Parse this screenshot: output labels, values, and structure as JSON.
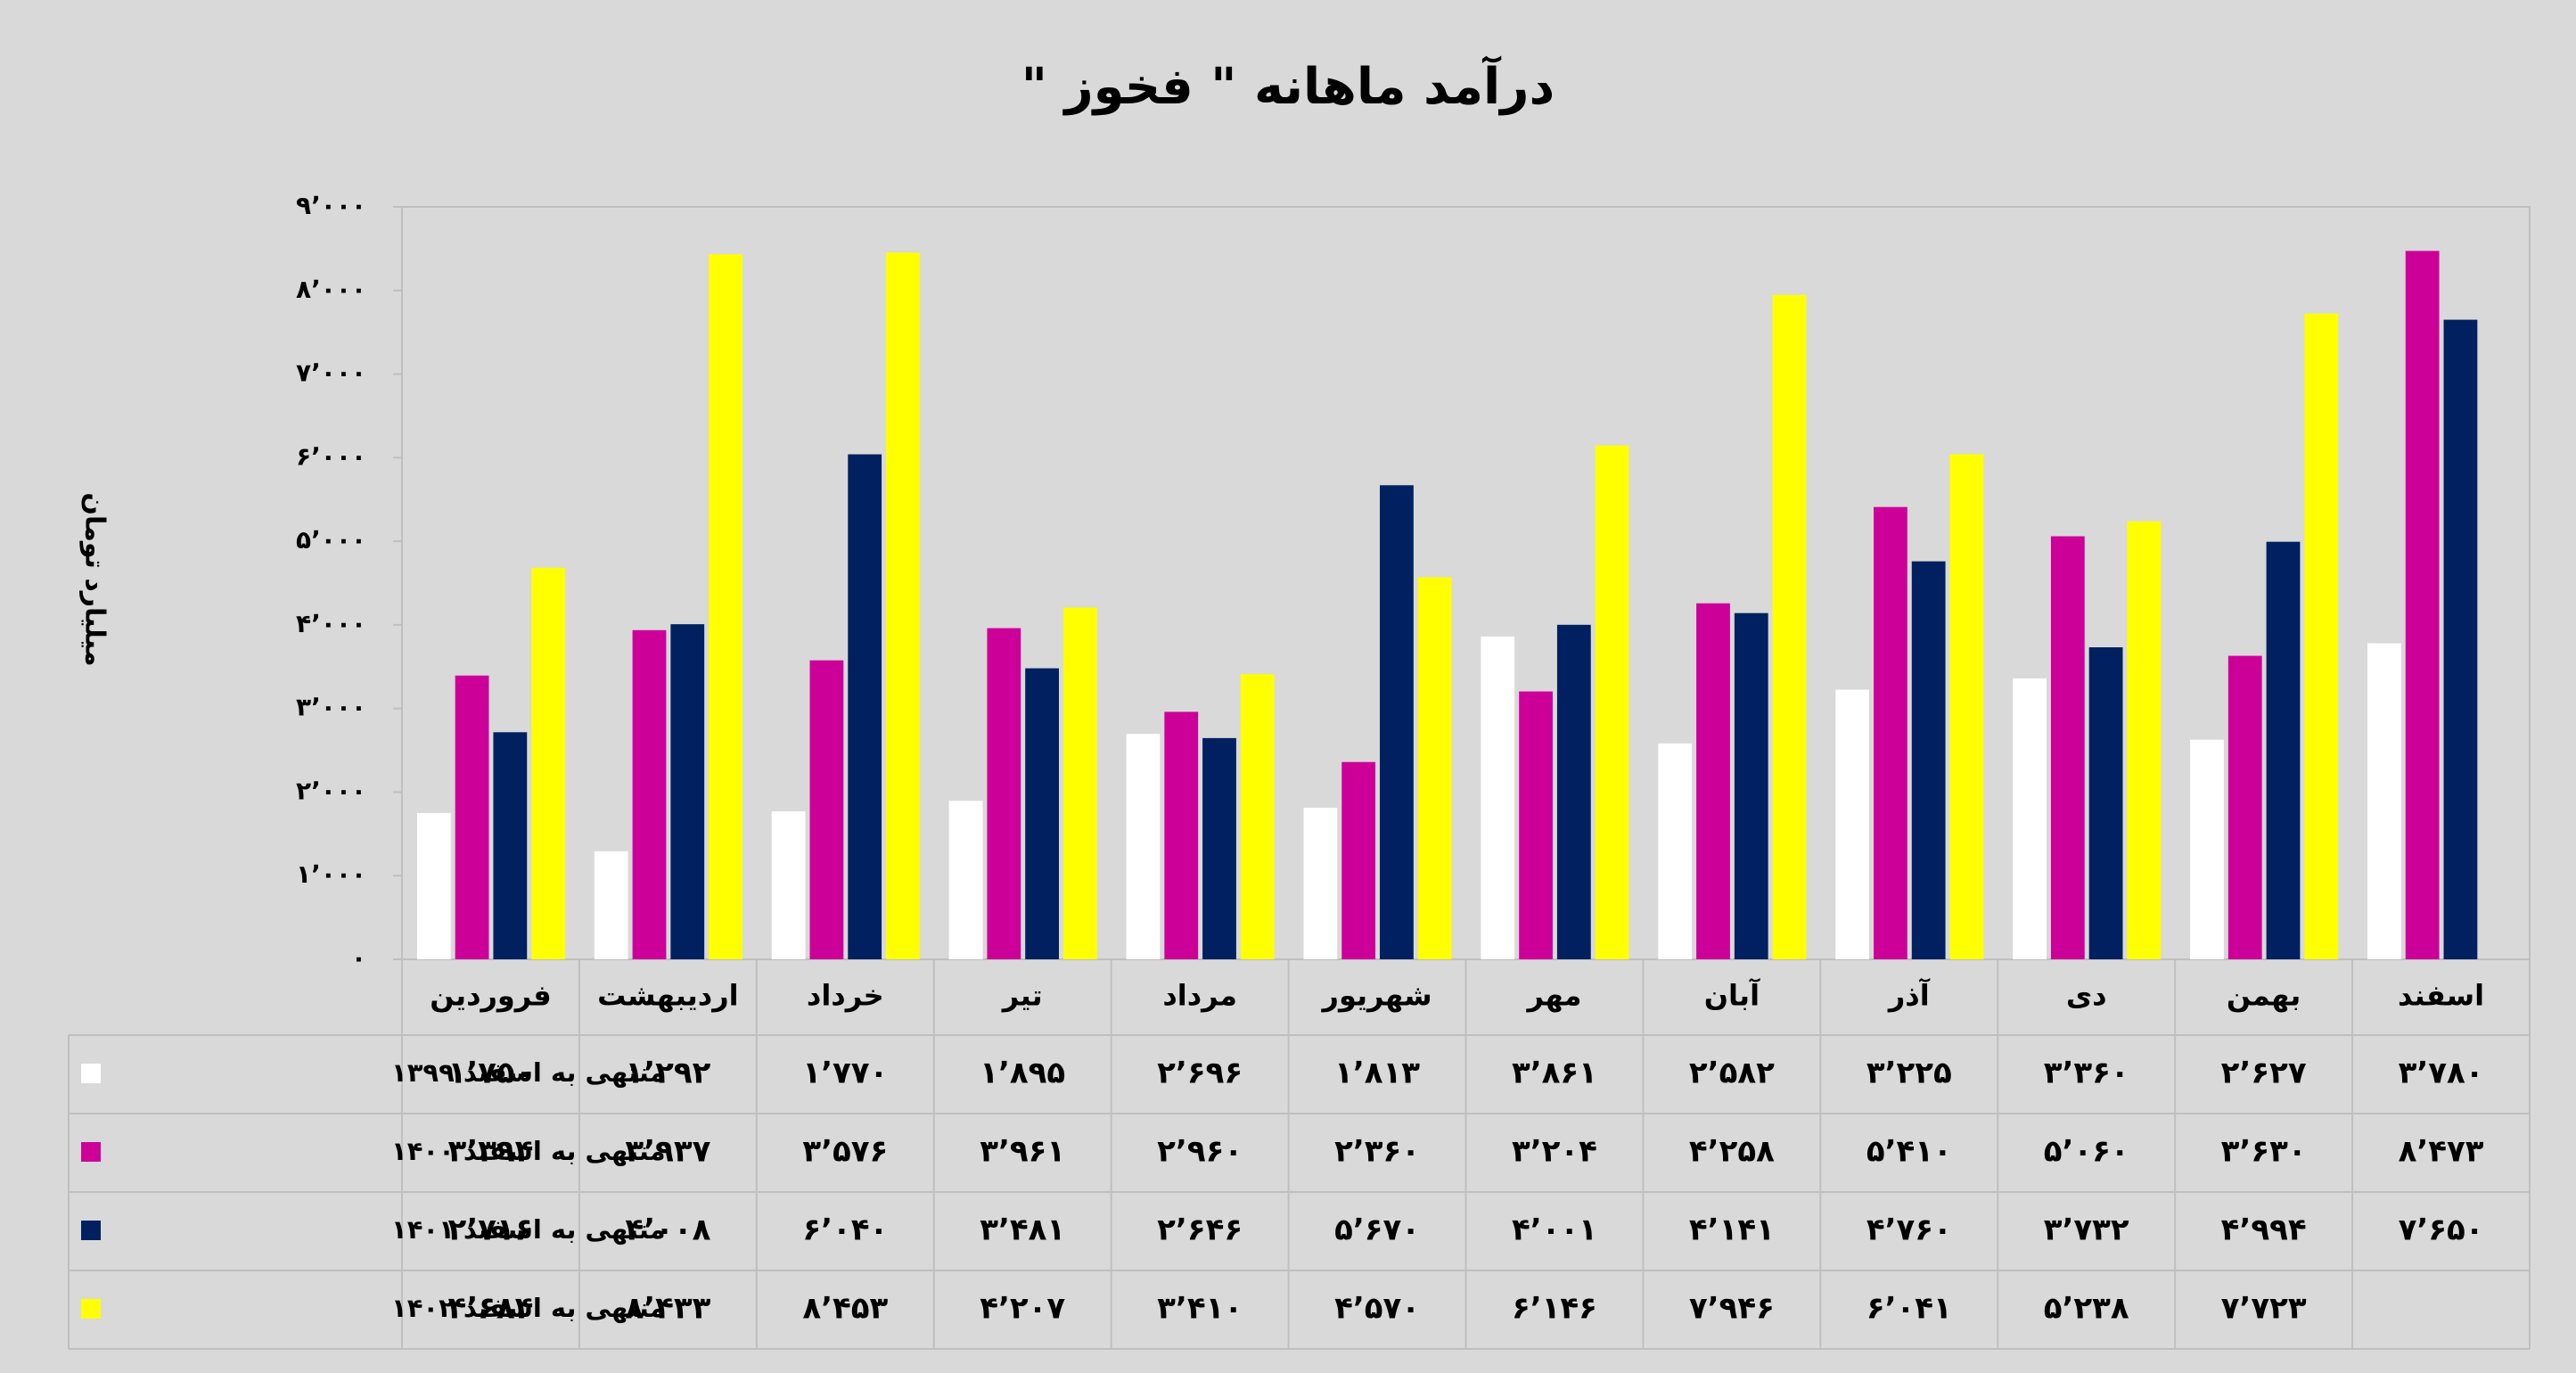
{
  "chart_data": {
    "type": "bar",
    "title": "درآمد ماهانه \" فخوز \"",
    "y_axis_label": "میلیارد تومان",
    "categories": [
      "فروردین",
      "اردیبهشت",
      "خرداد",
      "تیر",
      "مرداد",
      "شهریور",
      "مهر",
      "آبان",
      "آذر",
      "دی",
      "بهمن",
      "اسفند"
    ],
    "ylim": [
      0,
      9000
    ],
    "yticks": [
      {
        "value": 0,
        "label": "۰"
      },
      {
        "value": 1000,
        "label": "۱٬۰۰۰"
      },
      {
        "value": 2000,
        "label": "۲٬۰۰۰"
      },
      {
        "value": 3000,
        "label": "۳٬۰۰۰"
      },
      {
        "value": 4000,
        "label": "۴٬۰۰۰"
      },
      {
        "value": 5000,
        "label": "۵٬۰۰۰"
      },
      {
        "value": 6000,
        "label": "۶٬۰۰۰"
      },
      {
        "value": 7000,
        "label": "۷٬۰۰۰"
      },
      {
        "value": 8000,
        "label": "۸٬۰۰۰"
      },
      {
        "value": 9000,
        "label": "۹٬۰۰۰"
      }
    ],
    "grid": false,
    "series": [
      {
        "name": "منتهی به اسفند ۱۳۹۹",
        "color": "#ffffff",
        "values": [
          1750,
          1292,
          1770,
          1895,
          2696,
          1813,
          3861,
          2582,
          3225,
          3360,
          2627,
          3780
        ],
        "value_labels": [
          "۱٬۷۵۰",
          "۱٬۲۹۲",
          "۱٬۷۷۰",
          "۱٬۸۹۵",
          "۲٬۶۹۶",
          "۱٬۸۱۳",
          "۳٬۸۶۱",
          "۲٬۵۸۲",
          "۳٬۲۲۵",
          "۳٬۳۶۰",
          "۲٬۶۲۷",
          "۳٬۷۸۰"
        ]
      },
      {
        "name": "منتهی به اسفند ۱۴۰۰",
        "color": "#cc0099",
        "values": [
          3394,
          3937,
          3576,
          3961,
          2960,
          2360,
          3204,
          4258,
          5410,
          5060,
          3630,
          8473
        ],
        "value_labels": [
          "۳٬۳۹۴",
          "۳٬۹۳۷",
          "۳٬۵۷۶",
          "۳٬۹۶۱",
          "۲٬۹۶۰",
          "۲٬۳۶۰",
          "۳٬۲۰۴",
          "۴٬۲۵۸",
          "۵٬۴۱۰",
          "۵٬۰۶۰",
          "۳٬۶۳۰",
          "۸٬۴۷۳"
        ]
      },
      {
        "name": "منتهی به اسفند ۱۴۰۱",
        "color": "#002060",
        "values": [
          2716,
          4008,
          6040,
          3481,
          2646,
          5670,
          4001,
          4141,
          4760,
          3732,
          4994,
          7650
        ],
        "value_labels": [
          "۲٬۷۱۶",
          "۴٬۰۰۸",
          "۶٬۰۴۰",
          "۳٬۴۸۱",
          "۲٬۶۴۶",
          "۵٬۶۷۰",
          "۴٬۰۰۱",
          "۴٬۱۴۱",
          "۴٬۷۶۰",
          "۳٬۷۳۲",
          "۴٬۹۹۴",
          "۷٬۶۵۰"
        ]
      },
      {
        "name": "منتهی به اسفند ۱۴۰۲",
        "color": "#ffff00",
        "values": [
          4684,
          8433,
          8453,
          4207,
          3410,
          4570,
          6146,
          7946,
          6041,
          5238,
          7723,
          null
        ],
        "value_labels": [
          "۴٬۶۸۴",
          "۸٬۴۳۳",
          "۸٬۴۵۳",
          "۴٬۲۰۷",
          "۳٬۴۱۰",
          "۴٬۵۷۰",
          "۶٬۱۴۶",
          "۷٬۹۴۶",
          "۶٬۰۴۱",
          "۵٬۲۳۸",
          "۷٬۷۲۳",
          null
        ]
      }
    ]
  }
}
